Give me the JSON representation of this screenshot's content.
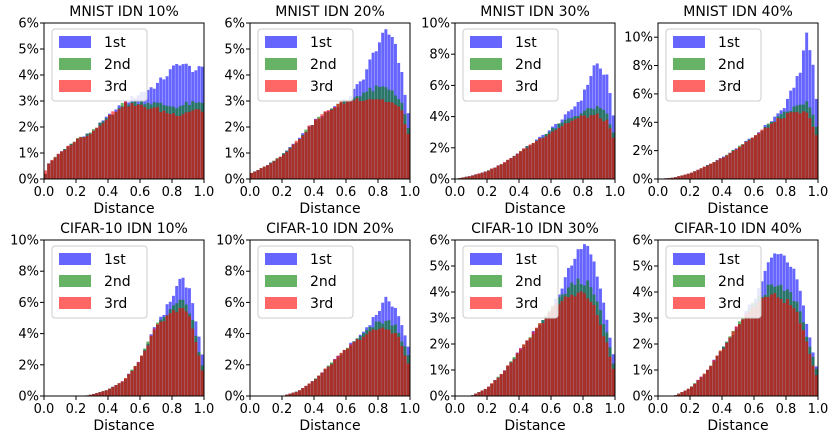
{
  "chart_data": [
    {
      "type": "bar",
      "title": "MNIST IDN 10%",
      "xlabel": "Distance",
      "ylabel": "",
      "xlim": [
        0.0,
        1.0
      ],
      "ylim": [
        0,
        6
      ],
      "xticks": [
        "0.0",
        "0.2",
        "0.4",
        "0.6",
        "0.8",
        "1.0"
      ],
      "yticks": [
        "0%",
        "1%",
        "2%",
        "3%",
        "4%",
        "5%",
        "6%"
      ],
      "legend": "top-left",
      "profile": [
        [
          0.0,
          0.0,
          0.0,
          0.2
        ],
        [
          0.03,
          0.6,
          0.6,
          0.6
        ],
        [
          0.1,
          1.0,
          1.0,
          1.0
        ],
        [
          0.2,
          1.5,
          1.5,
          1.5
        ],
        [
          0.3,
          1.8,
          1.8,
          1.8
        ],
        [
          0.4,
          2.4,
          2.4,
          2.4
        ],
        [
          0.5,
          2.9,
          2.9,
          2.9
        ],
        [
          0.6,
          3.3,
          3.0,
          2.8
        ],
        [
          0.7,
          3.6,
          2.9,
          2.7
        ],
        [
          0.8,
          4.2,
          2.8,
          2.5
        ],
        [
          0.85,
          4.5,
          2.8,
          2.5
        ],
        [
          0.9,
          4.3,
          2.9,
          2.6
        ],
        [
          0.95,
          4.2,
          2.9,
          2.7
        ],
        [
          1.0,
          4.2,
          2.9,
          2.6
        ]
      ],
      "series": [
        {
          "name": "1st",
          "color": "#0000ff"
        },
        {
          "name": "2nd",
          "color": "#008000"
        },
        {
          "name": "3rd",
          "color": "#ff0000"
        }
      ]
    },
    {
      "type": "bar",
      "title": "MNIST IDN 20%",
      "xlabel": "Distance",
      "ylabel": "",
      "xlim": [
        0.0,
        1.0
      ],
      "ylim": [
        0,
        6
      ],
      "xticks": [
        "0.0",
        "0.2",
        "0.4",
        "0.6",
        "0.8",
        "1.0"
      ],
      "yticks": [
        "0%",
        "1%",
        "2%",
        "3%",
        "4%",
        "5%",
        "6%"
      ],
      "legend": "top-left",
      "profile": [
        [
          0.0,
          0.2,
          0.2,
          0.2
        ],
        [
          0.1,
          0.5,
          0.5,
          0.5
        ],
        [
          0.2,
          0.9,
          0.9,
          0.9
        ],
        [
          0.3,
          1.5,
          1.5,
          1.5
        ],
        [
          0.4,
          2.2,
          2.2,
          2.2
        ],
        [
          0.5,
          2.7,
          2.7,
          2.7
        ],
        [
          0.6,
          3.0,
          3.0,
          3.0
        ],
        [
          0.7,
          3.8,
          3.3,
          3.1
        ],
        [
          0.8,
          5.2,
          3.5,
          3.1
        ],
        [
          0.85,
          5.6,
          3.5,
          3.0
        ],
        [
          0.9,
          5.5,
          3.4,
          2.9
        ],
        [
          0.95,
          4.0,
          2.9,
          2.6
        ],
        [
          1.0,
          2.2,
          1.7,
          1.5
        ]
      ],
      "series": [
        {
          "name": "1st",
          "color": "#0000ff"
        },
        {
          "name": "2nd",
          "color": "#008000"
        },
        {
          "name": "3rd",
          "color": "#ff0000"
        }
      ]
    },
    {
      "type": "bar",
      "title": "MNIST IDN 30%",
      "xlabel": "Distance",
      "ylabel": "",
      "xlim": [
        0.0,
        1.0
      ],
      "ylim": [
        0,
        10
      ],
      "xticks": [
        "0.0",
        "0.2",
        "0.4",
        "0.6",
        "0.8",
        "1.0"
      ],
      "yticks": [
        "0%",
        "2%",
        "4%",
        "6%",
        "8%",
        "10%"
      ],
      "legend": "top-left",
      "profile": [
        [
          0.0,
          0.0,
          0.0,
          0.0
        ],
        [
          0.1,
          0.2,
          0.2,
          0.2
        ],
        [
          0.2,
          0.5,
          0.5,
          0.5
        ],
        [
          0.3,
          1.0,
          1.0,
          1.0
        ],
        [
          0.4,
          1.7,
          1.7,
          1.7
        ],
        [
          0.5,
          2.4,
          2.4,
          2.4
        ],
        [
          0.6,
          3.2,
          3.1,
          3.0
        ],
        [
          0.7,
          4.1,
          3.8,
          3.6
        ],
        [
          0.8,
          5.3,
          4.3,
          4.0
        ],
        [
          0.88,
          7.5,
          4.6,
          4.1
        ],
        [
          0.95,
          6.5,
          4.2,
          3.7
        ],
        [
          1.0,
          3.6,
          2.6,
          2.3
        ]
      ],
      "series": [
        {
          "name": "1st",
          "color": "#0000ff"
        },
        {
          "name": "2nd",
          "color": "#008000"
        },
        {
          "name": "3rd",
          "color": "#ff0000"
        }
      ]
    },
    {
      "type": "bar",
      "title": "MNIST IDN 40%",
      "xlabel": "Distance",
      "ylabel": "",
      "xlim": [
        0.0,
        1.0
      ],
      "ylim": [
        0,
        11
      ],
      "xticks": [
        "0.0",
        "0.2",
        "0.4",
        "0.6",
        "0.8",
        "1.0"
      ],
      "yticks": [
        "0%",
        "2%",
        "4%",
        "6%",
        "8%",
        "10%"
      ],
      "legend": "top-left",
      "profile": [
        [
          0.0,
          0.0,
          0.0,
          0.0
        ],
        [
          0.1,
          0.1,
          0.1,
          0.1
        ],
        [
          0.2,
          0.4,
          0.4,
          0.4
        ],
        [
          0.3,
          0.9,
          0.9,
          0.9
        ],
        [
          0.4,
          1.5,
          1.5,
          1.5
        ],
        [
          0.5,
          2.2,
          2.2,
          2.2
        ],
        [
          0.6,
          3.0,
          3.0,
          3.0
        ],
        [
          0.7,
          4.0,
          3.9,
          3.8
        ],
        [
          0.8,
          5.2,
          4.7,
          4.5
        ],
        [
          0.9,
          8.0,
          5.3,
          4.7
        ],
        [
          0.93,
          10.3,
          5.4,
          4.6
        ],
        [
          0.97,
          8.0,
          4.5,
          3.8
        ],
        [
          1.0,
          4.5,
          3.2,
          2.8
        ]
      ],
      "series": [
        {
          "name": "1st",
          "color": "#0000ff"
        },
        {
          "name": "2nd",
          "color": "#008000"
        },
        {
          "name": "3rd",
          "color": "#ff0000"
        }
      ]
    },
    {
      "type": "bar",
      "title": "CIFAR-10 IDN 10%",
      "xlabel": "Distance",
      "ylabel": "",
      "xlim": [
        0.0,
        1.0
      ],
      "ylim": [
        0,
        10
      ],
      "xticks": [
        "0.0",
        "0.2",
        "0.4",
        "0.6",
        "0.8",
        "1.0"
      ],
      "yticks": [
        "0%",
        "2%",
        "4%",
        "6%",
        "8%",
        "10%"
      ],
      "legend": "top-left",
      "profile": [
        [
          0.0,
          0.0,
          0.0,
          0.0
        ],
        [
          0.25,
          0.0,
          0.0,
          0.0
        ],
        [
          0.3,
          0.1,
          0.1,
          0.1
        ],
        [
          0.4,
          0.4,
          0.4,
          0.4
        ],
        [
          0.5,
          1.0,
          1.0,
          1.0
        ],
        [
          0.6,
          2.3,
          2.3,
          2.3
        ],
        [
          0.7,
          4.5,
          4.5,
          4.4
        ],
        [
          0.8,
          6.2,
          5.6,
          5.3
        ],
        [
          0.86,
          7.8,
          6.2,
          5.8
        ],
        [
          0.92,
          6.6,
          5.2,
          4.8
        ],
        [
          1.0,
          2.0,
          1.5,
          1.2
        ]
      ],
      "series": [
        {
          "name": "1st",
          "color": "#0000ff"
        },
        {
          "name": "2nd",
          "color": "#008000"
        },
        {
          "name": "3rd",
          "color": "#ff0000"
        }
      ]
    },
    {
      "type": "bar",
      "title": "CIFAR-10 IDN 20%",
      "xlabel": "Distance",
      "ylabel": "",
      "xlim": [
        0.0,
        1.0
      ],
      "ylim": [
        0,
        10
      ],
      "xticks": [
        "0.0",
        "0.2",
        "0.4",
        "0.6",
        "0.8",
        "1.0"
      ],
      "yticks": [
        "0%",
        "2%",
        "4%",
        "6%",
        "8%",
        "10%"
      ],
      "legend": "top-left",
      "profile": [
        [
          0.0,
          0.0,
          0.0,
          0.0
        ],
        [
          0.2,
          0.0,
          0.0,
          0.0
        ],
        [
          0.3,
          0.3,
          0.3,
          0.3
        ],
        [
          0.4,
          1.0,
          1.0,
          1.0
        ],
        [
          0.5,
          2.0,
          2.0,
          2.0
        ],
        [
          0.6,
          3.0,
          3.0,
          3.0
        ],
        [
          0.7,
          4.0,
          3.9,
          3.8
        ],
        [
          0.8,
          5.4,
          4.7,
          4.3
        ],
        [
          0.86,
          6.3,
          4.8,
          4.3
        ],
        [
          0.92,
          5.5,
          4.4,
          4.0
        ],
        [
          1.0,
          2.8,
          2.3,
          1.8
        ]
      ],
      "series": [
        {
          "name": "1st",
          "color": "#0000ff"
        },
        {
          "name": "2nd",
          "color": "#008000"
        },
        {
          "name": "3rd",
          "color": "#ff0000"
        }
      ]
    },
    {
      "type": "bar",
      "title": "CIFAR-10 IDN 30%",
      "xlabel": "Distance",
      "ylabel": "",
      "xlim": [
        0.0,
        1.0
      ],
      "ylim": [
        0,
        6
      ],
      "xticks": [
        "0.0",
        "0.2",
        "0.4",
        "0.6",
        "0.8",
        "1.0"
      ],
      "yticks": [
        "0%",
        "1%",
        "2%",
        "3%",
        "4%",
        "5%",
        "6%"
      ],
      "legend": "top-left",
      "profile": [
        [
          0.0,
          0.0,
          0.0,
          0.0
        ],
        [
          0.1,
          0.0,
          0.0,
          0.0
        ],
        [
          0.2,
          0.3,
          0.3,
          0.3
        ],
        [
          0.3,
          0.9,
          0.9,
          0.9
        ],
        [
          0.4,
          1.7,
          1.7,
          1.7
        ],
        [
          0.5,
          2.5,
          2.5,
          2.5
        ],
        [
          0.6,
          3.3,
          3.3,
          3.3
        ],
        [
          0.7,
          4.6,
          4.1,
          3.8
        ],
        [
          0.76,
          5.6,
          4.4,
          4.0
        ],
        [
          0.82,
          5.8,
          4.4,
          3.9
        ],
        [
          0.88,
          5.0,
          3.8,
          3.3
        ],
        [
          0.95,
          3.0,
          2.4,
          2.0
        ],
        [
          1.0,
          1.2,
          1.0,
          0.8
        ]
      ],
      "series": [
        {
          "name": "1st",
          "color": "#0000ff"
        },
        {
          "name": "2nd",
          "color": "#008000"
        },
        {
          "name": "3rd",
          "color": "#ff0000"
        }
      ]
    },
    {
      "type": "bar",
      "title": "CIFAR-10 IDN 40%",
      "xlabel": "Distance",
      "ylabel": "",
      "xlim": [
        0.0,
        1.0
      ],
      "ylim": [
        0,
        6
      ],
      "xticks": [
        "0.0",
        "0.2",
        "0.4",
        "0.6",
        "0.8",
        "1.0"
      ],
      "yticks": [
        "0%",
        "1%",
        "2%",
        "3%",
        "4%",
        "5%",
        "6%"
      ],
      "legend": "top-left",
      "profile": [
        [
          0.0,
          0.0,
          0.0,
          0.0
        ],
        [
          0.1,
          0.0,
          0.0,
          0.0
        ],
        [
          0.2,
          0.3,
          0.3,
          0.3
        ],
        [
          0.3,
          0.9,
          0.9,
          0.9
        ],
        [
          0.4,
          1.8,
          1.8,
          1.8
        ],
        [
          0.5,
          2.7,
          2.7,
          2.7
        ],
        [
          0.6,
          3.7,
          3.6,
          3.5
        ],
        [
          0.7,
          5.2,
          4.2,
          3.9
        ],
        [
          0.75,
          5.6,
          4.2,
          3.8
        ],
        [
          0.82,
          5.2,
          4.0,
          3.6
        ],
        [
          0.88,
          4.3,
          3.5,
          3.1
        ],
        [
          0.95,
          2.2,
          1.9,
          1.6
        ],
        [
          1.0,
          0.9,
          0.8,
          0.6
        ]
      ],
      "series": [
        {
          "name": "1st",
          "color": "#0000ff"
        },
        {
          "name": "2nd",
          "color": "#008000"
        },
        {
          "name": "3rd",
          "color": "#ff0000"
        }
      ]
    }
  ]
}
